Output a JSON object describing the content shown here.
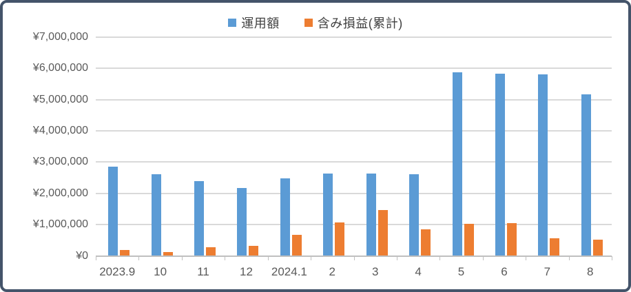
{
  "frame": {
    "border_color": "#44546A",
    "background": "#FFFFFF"
  },
  "legend": {
    "items": [
      {
        "key": "operating-amount",
        "label": "運用額",
        "color": "#5B9BD5"
      },
      {
        "key": "unrealized-pl",
        "label": "含み損益(累計)",
        "color": "#ED7D31"
      }
    ]
  },
  "chart_data": {
    "type": "bar",
    "title": "",
    "xlabel": "",
    "ylabel": "",
    "categories": [
      "2023.9",
      "10",
      "11",
      "12",
      "2024.1",
      "2",
      "3",
      "4",
      "5",
      "6",
      "7",
      "8"
    ],
    "series": [
      {
        "name": "運用額",
        "color": "#5B9BD5",
        "values": [
          2860000,
          2620000,
          2390000,
          2170000,
          2490000,
          2640000,
          2640000,
          2620000,
          5870000,
          5840000,
          5800000,
          5180000
        ]
      },
      {
        "name": "含み損益(累計)",
        "color": "#ED7D31",
        "values": [
          180000,
          120000,
          270000,
          330000,
          680000,
          1070000,
          1460000,
          840000,
          1020000,
          1040000,
          570000,
          520000
        ]
      }
    ],
    "ylim": [
      0,
      7000000
    ],
    "ytick_interval": 1000000,
    "ytick_labels": [
      "¥0",
      "¥1,000,000",
      "¥2,000,000",
      "¥3,000,000",
      "¥4,000,000",
      "¥5,000,000",
      "¥6,000,000",
      "¥7,000,000"
    ],
    "grid": true,
    "legend_position": "top",
    "grid_color": "#D9D9D9",
    "axis_color": "#BFBFBF",
    "label_color": "#595959"
  }
}
